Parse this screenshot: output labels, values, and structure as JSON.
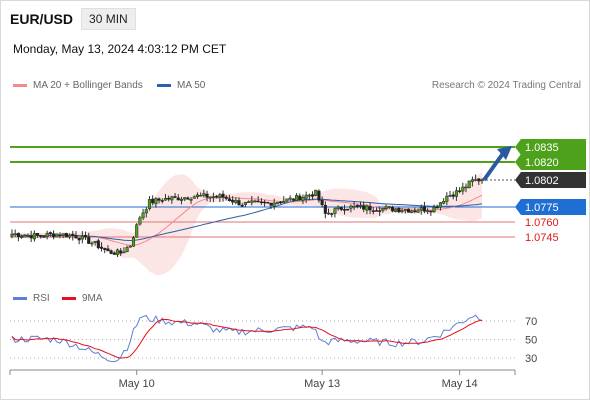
{
  "header": {
    "symbol": "EUR/USD",
    "timeframe": "30 MIN"
  },
  "timestamp": "Monday, May 13, 2024 4:03:12 PM CET",
  "legend": {
    "ma20": {
      "label": "MA 20 + Bollinger Bands",
      "color": "#f28b8b"
    },
    "ma50": {
      "label": "MA 50",
      "color": "#2b5fa8"
    }
  },
  "credit": "Research © 2024 Trading Central",
  "rsi_legend": {
    "rsi": {
      "label": "RSI",
      "color": "#5b7fd6"
    },
    "ma9": {
      "label": "9MA",
      "color": "#e8101a"
    }
  },
  "chart_data": [
    {
      "type": "candlestick",
      "x_ticks": [
        "May 10",
        "May 13",
        "May 14"
      ],
      "ylim": [
        1.0712,
        1.0885
      ],
      "levels": [
        {
          "value": "1.0835",
          "style": "resistance",
          "color": "#4ea11a"
        },
        {
          "value": "1.0820",
          "style": "resistance",
          "color": "#4ea11a"
        },
        {
          "value": "1.0802",
          "style": "current",
          "color": "#333333"
        },
        {
          "value": "1.0775",
          "style": "pivot",
          "color": "#1f6ed4"
        },
        {
          "value": "1.0760",
          "style": "support",
          "color": "#e07373"
        },
        {
          "value": "1.0745",
          "style": "support",
          "color": "#e07373"
        }
      ],
      "anchors": [
        [
          0,
          1.0748
        ],
        [
          8,
          1.0746
        ],
        [
          14,
          1.0748
        ],
        [
          20,
          1.0746
        ],
        [
          26,
          1.0738
        ],
        [
          30,
          1.073
        ],
        [
          34,
          1.0729
        ],
        [
          37,
          1.0737
        ],
        [
          40,
          1.0765
        ],
        [
          43,
          1.078
        ],
        [
          48,
          1.0783
        ],
        [
          58,
          1.0786
        ],
        [
          66,
          1.0785
        ],
        [
          72,
          1.0778
        ],
        [
          80,
          1.0779
        ],
        [
          88,
          1.0783
        ],
        [
          95,
          1.0789
        ],
        [
          98,
          1.0768
        ],
        [
          104,
          1.0775
        ],
        [
          112,
          1.0774
        ],
        [
          120,
          1.0773
        ],
        [
          126,
          1.0772
        ],
        [
          132,
          1.0774
        ],
        [
          136,
          1.0786
        ],
        [
          140,
          1.0791
        ],
        [
          144,
          1.0801
        ],
        [
          147,
          1.0803
        ]
      ],
      "arrow": {
        "from_value": 1.0802,
        "to_value": 1.0836
      }
    },
    {
      "type": "line",
      "title": "RSI",
      "y_ticks": [
        70,
        50,
        30
      ],
      "ylim": [
        20,
        80
      ],
      "rsi_anchors": [
        [
          0,
          50
        ],
        [
          8,
          51
        ],
        [
          14,
          50
        ],
        [
          20,
          44
        ],
        [
          26,
          35
        ],
        [
          30,
          30
        ],
        [
          33,
          28
        ],
        [
          36,
          42
        ],
        [
          40,
          74
        ],
        [
          44,
          72
        ],
        [
          50,
          69
        ],
        [
          58,
          67
        ],
        [
          64,
          60
        ],
        [
          70,
          58
        ],
        [
          78,
          60
        ],
        [
          86,
          62
        ],
        [
          94,
          64
        ],
        [
          97,
          47
        ],
        [
          104,
          49
        ],
        [
          112,
          48
        ],
        [
          120,
          46
        ],
        [
          128,
          48
        ],
        [
          134,
          56
        ],
        [
          140,
          68
        ],
        [
          144,
          76
        ],
        [
          147,
          74
        ]
      ]
    }
  ]
}
